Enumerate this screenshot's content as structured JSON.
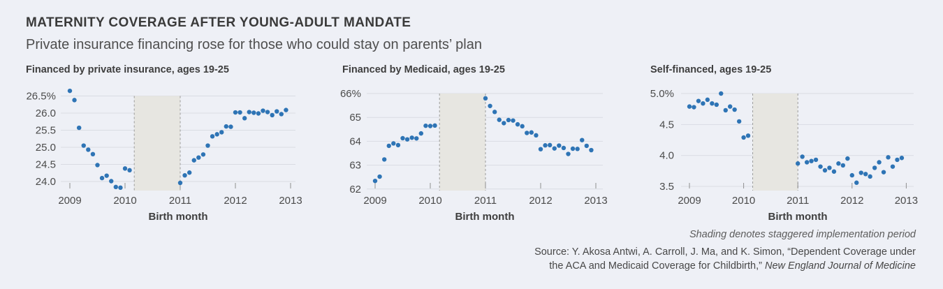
{
  "header": {
    "title": "MATERNITY COVERAGE AFTER YOUNG-ADULT MANDATE",
    "subtitle": "Private insurance financing rose for those who could stay on parents’ plan"
  },
  "colors": {
    "dot": "#2e74b5",
    "shading": "#e7e6e1",
    "background": "#eef0f6"
  },
  "footer": {
    "shading_note": "Shading denotes staggered implementation period",
    "source_line1": "Source: Y. Akosa Antwi, A. Carroll, J. Ma, and K. Simon, “Dependent Coverage under",
    "source_line2_prefix": "the ACA and Medicaid Coverage for Childbirth,” ",
    "source_line2_italic": "New England Journal of Medicine"
  },
  "chart_data": [
    {
      "type": "scatter",
      "title": "Financed by private insurance, ages 19-25",
      "xlabel": "Birth month",
      "ylim": [
        23.7,
        26.8
      ],
      "grid": true,
      "shading": {
        "from": 2010.167,
        "to": 2011.0
      },
      "yticks": [
        {
          "v": 26.5,
          "label": "26.5%"
        },
        {
          "v": 26.0,
          "label": "26.0"
        },
        {
          "v": 25.5,
          "label": "25.5"
        },
        {
          "v": 25.0,
          "label": "25.0"
        },
        {
          "v": 24.5,
          "label": "24.5"
        },
        {
          "v": 24.0,
          "label": "24.0"
        }
      ],
      "xticks": [
        {
          "v": 2009,
          "label": "2009"
        },
        {
          "v": 2010,
          "label": "2010"
        },
        {
          "v": 2011,
          "label": "2011"
        },
        {
          "v": 2012,
          "label": "2012"
        },
        {
          "v": 2013,
          "label": "2013"
        }
      ],
      "points": [
        [
          2009.0,
          26.65
        ],
        [
          2009.083,
          26.38
        ],
        [
          2009.167,
          25.57
        ],
        [
          2009.25,
          25.05
        ],
        [
          2009.333,
          24.93
        ],
        [
          2009.417,
          24.8
        ],
        [
          2009.5,
          24.48
        ],
        [
          2009.583,
          24.1
        ],
        [
          2009.667,
          24.17
        ],
        [
          2009.75,
          24.01
        ],
        [
          2009.833,
          23.84
        ],
        [
          2009.917,
          23.82
        ],
        [
          2010.0,
          24.38
        ],
        [
          2010.083,
          24.33
        ],
        [
          2011.0,
          23.96
        ],
        [
          2011.083,
          24.18
        ],
        [
          2011.167,
          24.26
        ],
        [
          2011.25,
          24.62
        ],
        [
          2011.333,
          24.7
        ],
        [
          2011.417,
          24.79
        ],
        [
          2011.5,
          25.05
        ],
        [
          2011.583,
          25.32
        ],
        [
          2011.667,
          25.38
        ],
        [
          2011.75,
          25.44
        ],
        [
          2011.833,
          25.61
        ],
        [
          2011.917,
          25.6
        ],
        [
          2012.0,
          26.02
        ],
        [
          2012.083,
          26.02
        ],
        [
          2012.167,
          25.85
        ],
        [
          2012.25,
          26.03
        ],
        [
          2012.333,
          26.01
        ],
        [
          2012.417,
          25.99
        ],
        [
          2012.5,
          26.07
        ],
        [
          2012.583,
          26.03
        ],
        [
          2012.667,
          25.94
        ],
        [
          2012.75,
          26.05
        ],
        [
          2012.833,
          25.97
        ],
        [
          2012.917,
          26.09
        ]
      ]
    },
    {
      "type": "scatter",
      "title": "Financed by Medicaid, ages 19-25",
      "xlabel": "Birth month",
      "ylim": [
        62,
        66
      ],
      "grid": true,
      "shading": {
        "from": 2010.167,
        "to": 2011.0
      },
      "yticks": [
        {
          "v": 66,
          "label": "66%"
        },
        {
          "v": 65,
          "label": "65"
        },
        {
          "v": 64,
          "label": "64"
        },
        {
          "v": 63,
          "label": "63"
        },
        {
          "v": 62,
          "label": "62"
        }
      ],
      "xticks": [
        {
          "v": 2009,
          "label": "2009"
        },
        {
          "v": 2010,
          "label": "2010"
        },
        {
          "v": 2011,
          "label": "2011"
        },
        {
          "v": 2012,
          "label": "2012"
        },
        {
          "v": 2013,
          "label": "2013"
        }
      ],
      "points": [
        [
          2009.0,
          62.34
        ],
        [
          2009.083,
          62.52
        ],
        [
          2009.167,
          63.24
        ],
        [
          2009.25,
          63.81
        ],
        [
          2009.333,
          63.91
        ],
        [
          2009.417,
          63.84
        ],
        [
          2009.5,
          64.13
        ],
        [
          2009.583,
          64.08
        ],
        [
          2009.667,
          64.15
        ],
        [
          2009.75,
          64.12
        ],
        [
          2009.833,
          64.33
        ],
        [
          2009.917,
          64.65
        ],
        [
          2010.0,
          64.64
        ],
        [
          2010.083,
          64.66
        ],
        [
          2011.0,
          65.8
        ],
        [
          2011.083,
          65.48
        ],
        [
          2011.167,
          65.23
        ],
        [
          2011.25,
          64.9
        ],
        [
          2011.333,
          64.76
        ],
        [
          2011.417,
          64.89
        ],
        [
          2011.5,
          64.87
        ],
        [
          2011.583,
          64.71
        ],
        [
          2011.667,
          64.63
        ],
        [
          2011.75,
          64.35
        ],
        [
          2011.833,
          64.37
        ],
        [
          2011.917,
          64.25
        ],
        [
          2012.0,
          63.67
        ],
        [
          2012.083,
          63.83
        ],
        [
          2012.167,
          63.84
        ],
        [
          2012.25,
          63.7
        ],
        [
          2012.333,
          63.82
        ],
        [
          2012.417,
          63.72
        ],
        [
          2012.5,
          63.47
        ],
        [
          2012.583,
          63.69
        ],
        [
          2012.667,
          63.68
        ],
        [
          2012.75,
          64.05
        ],
        [
          2012.833,
          63.81
        ],
        [
          2012.917,
          63.63
        ]
      ]
    },
    {
      "type": "scatter",
      "title": "Self-financed, ages 19-25",
      "xlabel": "Birth month",
      "ylim": [
        3.5,
        5.0
      ],
      "grid": true,
      "shading": {
        "from": 2010.167,
        "to": 2011.0
      },
      "yticks": [
        {
          "v": 5.0,
          "label": "5.0%"
        },
        {
          "v": 4.5,
          "label": "4.5"
        },
        {
          "v": 4.0,
          "label": "4.0"
        },
        {
          "v": 3.5,
          "label": "3.5"
        }
      ],
      "xticks": [
        {
          "v": 2009,
          "label": "2009"
        },
        {
          "v": 2010,
          "label": "2010"
        },
        {
          "v": 2011,
          "label": "2011"
        },
        {
          "v": 2012,
          "label": "2012"
        },
        {
          "v": 2013,
          "label": "2013"
        }
      ],
      "points": [
        [
          2009.0,
          4.79
        ],
        [
          2009.083,
          4.78
        ],
        [
          2009.167,
          4.88
        ],
        [
          2009.25,
          4.84
        ],
        [
          2009.333,
          4.9
        ],
        [
          2009.417,
          4.84
        ],
        [
          2009.5,
          4.82
        ],
        [
          2009.583,
          5.0
        ],
        [
          2009.667,
          4.73
        ],
        [
          2009.75,
          4.79
        ],
        [
          2009.833,
          4.74
        ],
        [
          2009.917,
          4.55
        ],
        [
          2010.0,
          4.29
        ],
        [
          2010.083,
          4.32
        ],
        [
          2011.0,
          3.87
        ],
        [
          2011.083,
          3.98
        ],
        [
          2011.167,
          3.89
        ],
        [
          2011.25,
          3.91
        ],
        [
          2011.333,
          3.93
        ],
        [
          2011.417,
          3.82
        ],
        [
          2011.5,
          3.76
        ],
        [
          2011.583,
          3.8
        ],
        [
          2011.667,
          3.74
        ],
        [
          2011.75,
          3.87
        ],
        [
          2011.833,
          3.84
        ],
        [
          2011.917,
          3.95
        ],
        [
          2012.0,
          3.68
        ],
        [
          2012.083,
          3.56
        ],
        [
          2012.167,
          3.72
        ],
        [
          2012.25,
          3.7
        ],
        [
          2012.333,
          3.66
        ],
        [
          2012.417,
          3.8
        ],
        [
          2012.5,
          3.89
        ],
        [
          2012.583,
          3.73
        ],
        [
          2012.667,
          3.97
        ],
        [
          2012.75,
          3.82
        ],
        [
          2012.833,
          3.93
        ],
        [
          2012.917,
          3.96
        ]
      ]
    }
  ]
}
